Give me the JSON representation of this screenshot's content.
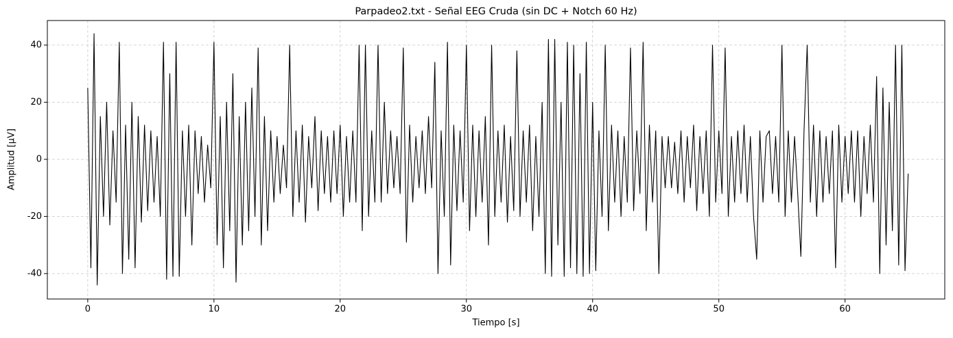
{
  "chart_data": {
    "type": "line",
    "title": "Parpadeo2.txt - Señal EEG Cruda (sin DC + Notch 60 Hz)",
    "xlabel": "Tiempo [s]",
    "ylabel": "Amplitud [µV]",
    "xlim": [
      -3.2,
      67.9
    ],
    "ylim": [
      -48.9,
      48.6
    ],
    "xticks": [
      0,
      10,
      20,
      30,
      40,
      50,
      60
    ],
    "yticks": [
      -40,
      -20,
      0,
      20,
      40
    ],
    "grid": true,
    "color": "#000000",
    "x": [
      0,
      0.25,
      0.5,
      0.75,
      1,
      1.25,
      1.5,
      1.75,
      2,
      2.25,
      2.5,
      2.75,
      3,
      3.25,
      3.5,
      3.75,
      4,
      4.25,
      4.5,
      4.75,
      5,
      5.25,
      5.5,
      5.75,
      6,
      6.25,
      6.5,
      6.75,
      7,
      7.25,
      7.5,
      7.75,
      8,
      8.25,
      8.5,
      8.75,
      9,
      9.25,
      9.5,
      9.75,
      10,
      10.25,
      10.5,
      10.75,
      11,
      11.25,
      11.5,
      11.75,
      12,
      12.25,
      12.5,
      12.75,
      13,
      13.25,
      13.5,
      13.75,
      14,
      14.25,
      14.5,
      14.75,
      15,
      15.25,
      15.5,
      15.75,
      16,
      16.25,
      16.5,
      16.75,
      17,
      17.25,
      17.5,
      17.75,
      18,
      18.25,
      18.5,
      18.75,
      19,
      19.25,
      19.5,
      19.75,
      20,
      20.25,
      20.5,
      20.75,
      21,
      21.25,
      21.5,
      21.75,
      22,
      22.25,
      22.5,
      22.75,
      23,
      23.25,
      23.5,
      23.75,
      24,
      24.25,
      24.5,
      24.75,
      25,
      25.25,
      25.5,
      25.75,
      26,
      26.25,
      26.5,
      26.75,
      27,
      27.25,
      27.5,
      27.75,
      28,
      28.25,
      28.5,
      28.75,
      29,
      29.25,
      29.5,
      29.75,
      30,
      30.25,
      30.5,
      30.75,
      31,
      31.25,
      31.5,
      31.75,
      32,
      32.25,
      32.5,
      32.75,
      33,
      33.25,
      33.5,
      33.75,
      34,
      34.25,
      34.5,
      34.75,
      35,
      35.25,
      35.5,
      35.75,
      36,
      36.25,
      36.5,
      36.75,
      37,
      37.25,
      37.5,
      37.75,
      38,
      38.25,
      38.5,
      38.75,
      39,
      39.25,
      39.5,
      39.75,
      40,
      40.25,
      40.5,
      40.75,
      41,
      41.25,
      41.5,
      41.75,
      42,
      42.25,
      42.5,
      42.75,
      43,
      43.25,
      43.5,
      43.75,
      44,
      44.25,
      44.5,
      44.75,
      45,
      45.25,
      45.5,
      45.75,
      46,
      46.25,
      46.5,
      46.75,
      47,
      47.25,
      47.5,
      47.75,
      48,
      48.25,
      48.5,
      48.75,
      49,
      49.25,
      49.5,
      49.75,
      50,
      50.25,
      50.5,
      50.75,
      51,
      51.25,
      51.5,
      51.75,
      52,
      52.25,
      52.5,
      52.75,
      53,
      53.25,
      53.5,
      53.75,
      54,
      54.25,
      54.5,
      54.75,
      55,
      55.25,
      55.5,
      55.75,
      56,
      56.25,
      56.5,
      56.75,
      57,
      57.25,
      57.5,
      57.75,
      58,
      58.25,
      58.5,
      58.75,
      59,
      59.25,
      59.5,
      59.75,
      60,
      60.25,
      60.5,
      60.75,
      61,
      61.25,
      61.5,
      61.75,
      62,
      62.25,
      62.5,
      62.75,
      63,
      63.25,
      63.5,
      63.75,
      64,
      64.25,
      64.5,
      64.75,
      65
    ],
    "values": [
      25,
      -38,
      44,
      -44,
      15,
      -20,
      20,
      -23,
      10,
      -15,
      41,
      -40,
      12,
      -35,
      20,
      -38,
      15,
      -22,
      12,
      -18,
      10,
      -15,
      8,
      -20,
      41,
      -42,
      30,
      -41,
      41,
      -41,
      10,
      -20,
      12,
      -30,
      10,
      -12,
      8,
      -15,
      5,
      -10,
      41,
      -30,
      15,
      -38,
      20,
      -25,
      30,
      -43,
      15,
      -30,
      20,
      -25,
      25,
      -20,
      39,
      -30,
      15,
      -25,
      10,
      -15,
      8,
      -12,
      5,
      -10,
      40,
      -20,
      10,
      -15,
      12,
      -22,
      8,
      -10,
      15,
      -18,
      10,
      -12,
      8,
      -15,
      10,
      -12,
      12,
      -20,
      8,
      -15,
      10,
      -15,
      40,
      -25,
      40,
      -20,
      10,
      -15,
      40,
      -15,
      20,
      -12,
      10,
      -10,
      8,
      -12,
      39,
      -29,
      12,
      -15,
      8,
      -10,
      10,
      -12,
      15,
      -10,
      34,
      -40,
      10,
      -20,
      41,
      -37,
      12,
      -18,
      10,
      -15,
      40,
      -25,
      12,
      -20,
      10,
      -15,
      15,
      -30,
      40,
      -20,
      10,
      -15,
      12,
      -22,
      8,
      -18,
      38,
      -20,
      10,
      -15,
      12,
      -25,
      8,
      -20,
      20,
      -40,
      42,
      -41,
      42,
      -30,
      20,
      -41,
      41,
      -38,
      40,
      -40,
      30,
      -41,
      41,
      -40,
      20,
      -39,
      10,
      -20,
      40,
      -25,
      12,
      -15,
      10,
      -20,
      8,
      -15,
      39,
      -18,
      10,
      -12,
      41,
      -25,
      12,
      -15,
      10,
      -40,
      8,
      -10,
      8,
      -10,
      6,
      -12,
      10,
      -15,
      8,
      -10,
      12,
      -18,
      8,
      -12,
      10,
      -20,
      40,
      -15,
      10,
      -12,
      39,
      -20,
      8,
      -15,
      10,
      -12,
      12,
      -15,
      8,
      -20,
      -35,
      10,
      -15,
      8,
      10,
      -12,
      8,
      -15,
      40,
      -20,
      10,
      -15,
      8,
      -12,
      -34,
      10,
      40,
      -15,
      12,
      -20,
      10,
      -15,
      8,
      -12,
      10,
      -38,
      12,
      -15,
      8,
      -12,
      10,
      -15,
      10,
      -20,
      8,
      -12,
      12,
      -15,
      29,
      -40,
      25,
      -30,
      20,
      -25,
      40,
      -37,
      40,
      -39,
      -5
    ]
  }
}
